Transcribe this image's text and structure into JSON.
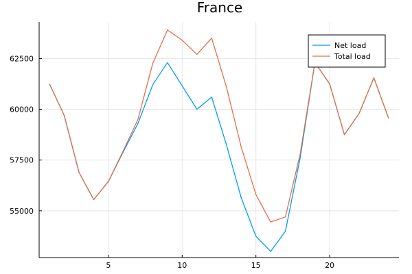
{
  "chart_data": {
    "type": "line",
    "title": "France",
    "xlabel": "",
    "ylabel": "",
    "x": [
      1,
      2,
      3,
      4,
      5,
      6,
      7,
      8,
      9,
      10,
      11,
      12,
      13,
      14,
      15,
      16,
      17,
      18,
      19,
      20,
      21,
      22,
      23,
      24
    ],
    "xlim": [
      0.3,
      24.7
    ],
    "ylim": [
      52700,
      64300
    ],
    "xticks": [
      5,
      10,
      15,
      20
    ],
    "yticks": [
      55000,
      57500,
      60000,
      62500
    ],
    "grid": true,
    "legend_position": "top-right",
    "series": [
      {
        "name": "Net load",
        "color": "#009af9",
        "values": [
          61250,
          59700,
          56900,
          55550,
          56450,
          57900,
          59300,
          61200,
          62300,
          61150,
          60000,
          60600,
          58250,
          55650,
          53750,
          53000,
          54000,
          57600,
          62300,
          61250,
          58750,
          59800,
          61550,
          59550
        ]
      },
      {
        "name": "Total load",
        "color": "#e26f46",
        "values": [
          61250,
          59700,
          56900,
          55550,
          56450,
          57950,
          59500,
          62250,
          63900,
          63400,
          62700,
          63500,
          61100,
          58150,
          55800,
          54450,
          54700,
          57800,
          62300,
          61250,
          58750,
          59800,
          61550,
          59550
        ]
      }
    ]
  }
}
